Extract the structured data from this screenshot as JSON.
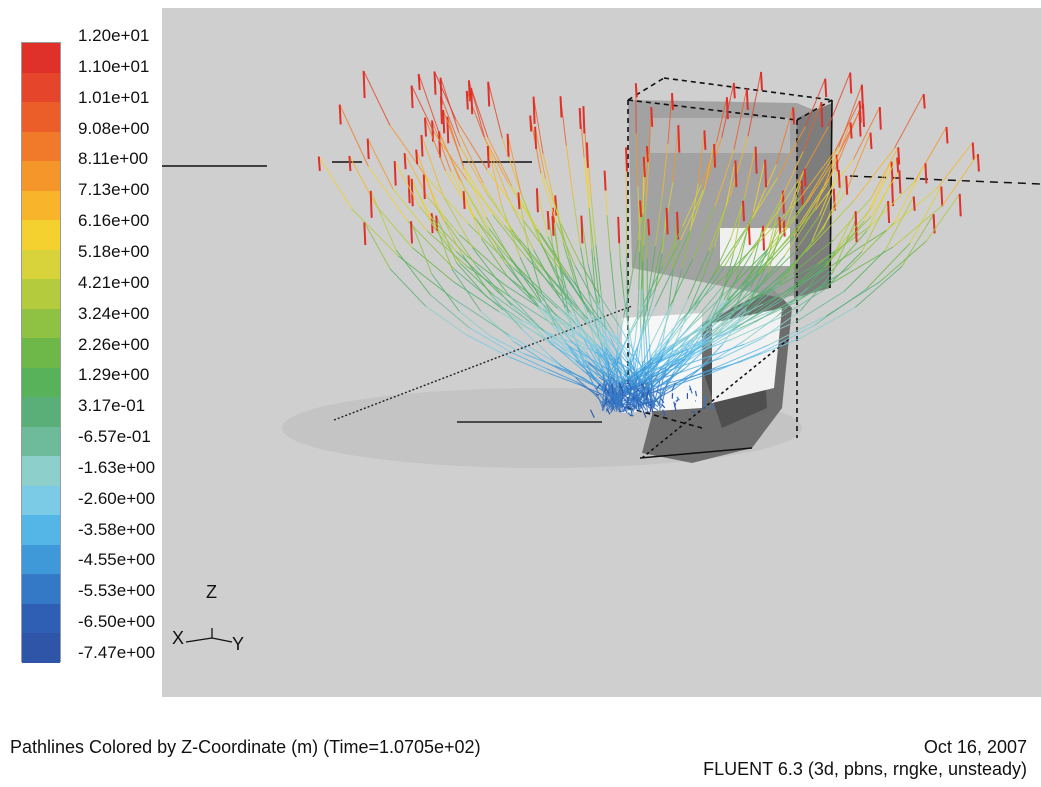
{
  "colorbar": {
    "labels": [
      "1.20e+01",
      "1.10e+01",
      "1.01e+01",
      "9.08e+00",
      "8.11e+00",
      "7.13e+00",
      "6.16e+00",
      "5.18e+00",
      "4.21e+00",
      "3.24e+00",
      "2.26e+00",
      "1.29e+00",
      "3.17e-01",
      "-6.57e-01",
      "-1.63e+00",
      "-2.60e+00",
      "-3.58e+00",
      "-4.55e+00",
      "-5.53e+00",
      "-6.50e+00",
      "-7.47e+00"
    ],
    "colors": [
      "#e0302a",
      "#e5452a",
      "#eb5e2a",
      "#f07a2a",
      "#f5962a",
      "#f8b52b",
      "#f4d12e",
      "#d8d33a",
      "#b5cb3e",
      "#8fc142",
      "#6db848",
      "#58b25a",
      "#5aaf78",
      "#6dbb9a",
      "#8ccfcb",
      "#7ccbe6",
      "#54b6e6",
      "#3f98d8",
      "#3479c6",
      "#2f5fb5",
      "#2f55a8"
    ]
  },
  "axes": {
    "z": "Z",
    "x": "X",
    "y": "Y"
  },
  "caption": {
    "title": "Pathlines Colored by Z-Coordinate (m)  (Time=1.0705e+02)",
    "date": "Oct 16, 2007",
    "solver": "FLUENT 6.3 (3d, pbns, rngke, unsteady)"
  }
}
